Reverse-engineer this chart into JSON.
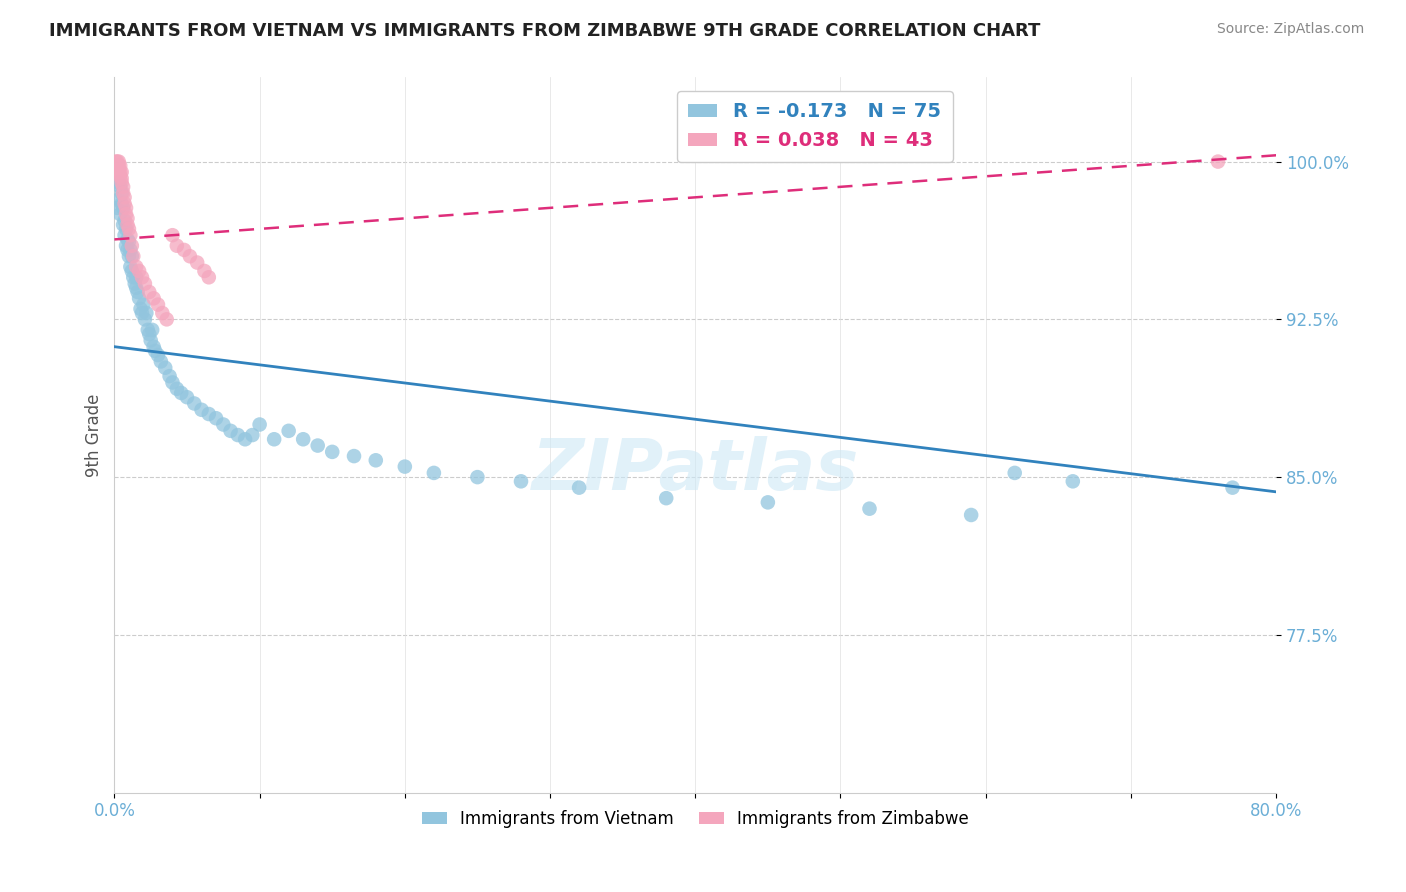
{
  "title": "IMMIGRANTS FROM VIETNAM VS IMMIGRANTS FROM ZIMBABWE 9TH GRADE CORRELATION CHART",
  "source": "Source: ZipAtlas.com",
  "ylabel": "9th Grade",
  "y_tick_values": [
    0.775,
    0.85,
    0.925,
    1.0
  ],
  "y_tick_labels": [
    "77.5%",
    "85.0%",
    "92.5%",
    "100.0%"
  ],
  "x_min": 0.0,
  "x_max": 0.8,
  "y_min": 0.7,
  "y_max": 1.04,
  "legend_blue_r": "-0.173",
  "legend_blue_n": "75",
  "legend_pink_r": "0.038",
  "legend_pink_n": "43",
  "legend_label_blue": "Immigrants from Vietnam",
  "legend_label_pink": "Immigrants from Zimbabwe",
  "color_blue": "#92c5de",
  "color_pink": "#f4a6bd",
  "color_trendline_blue": "#3182bd",
  "color_trendline_pink": "#de2d7a",
  "color_axis_labels": "#6baed6",
  "watermark": "ZIPatlas",
  "trendline_blue_x0": 0.0,
  "trendline_blue_y0": 0.912,
  "trendline_blue_x1": 0.8,
  "trendline_blue_y1": 0.843,
  "trendline_pink_x0": 0.0,
  "trendline_pink_y0": 0.963,
  "trendline_pink_x1": 0.8,
  "trendline_pink_y1": 1.003,
  "vietnam_x": [
    0.002,
    0.003,
    0.003,
    0.004,
    0.004,
    0.005,
    0.005,
    0.006,
    0.006,
    0.007,
    0.007,
    0.008,
    0.008,
    0.009,
    0.009,
    0.01,
    0.01,
    0.011,
    0.011,
    0.012,
    0.012,
    0.013,
    0.014,
    0.015,
    0.015,
    0.016,
    0.017,
    0.018,
    0.019,
    0.02,
    0.021,
    0.022,
    0.023,
    0.024,
    0.025,
    0.026,
    0.027,
    0.028,
    0.03,
    0.032,
    0.035,
    0.038,
    0.04,
    0.043,
    0.046,
    0.05,
    0.055,
    0.06,
    0.065,
    0.07,
    0.075,
    0.08,
    0.085,
    0.09,
    0.095,
    0.1,
    0.11,
    0.12,
    0.13,
    0.14,
    0.15,
    0.165,
    0.18,
    0.2,
    0.22,
    0.25,
    0.28,
    0.32,
    0.38,
    0.45,
    0.52,
    0.59,
    0.62,
    0.66,
    0.77
  ],
  "vietnam_y": [
    0.978,
    0.982,
    0.99,
    0.975,
    0.988,
    0.985,
    0.98,
    0.97,
    0.978,
    0.965,
    0.972,
    0.96,
    0.968,
    0.958,
    0.963,
    0.955,
    0.962,
    0.958,
    0.95,
    0.948,
    0.955,
    0.945,
    0.942,
    0.94,
    0.945,
    0.938,
    0.935,
    0.93,
    0.928,
    0.932,
    0.925,
    0.928,
    0.92,
    0.918,
    0.915,
    0.92,
    0.912,
    0.91,
    0.908,
    0.905,
    0.902,
    0.898,
    0.895,
    0.892,
    0.89,
    0.888,
    0.885,
    0.882,
    0.88,
    0.878,
    0.875,
    0.872,
    0.87,
    0.868,
    0.87,
    0.875,
    0.868,
    0.872,
    0.868,
    0.865,
    0.862,
    0.86,
    0.858,
    0.855,
    0.852,
    0.85,
    0.848,
    0.845,
    0.84,
    0.838,
    0.835,
    0.832,
    0.852,
    0.848,
    0.845
  ],
  "zimbabwe_x": [
    0.001,
    0.001,
    0.002,
    0.002,
    0.002,
    0.003,
    0.003,
    0.003,
    0.004,
    0.004,
    0.004,
    0.005,
    0.005,
    0.005,
    0.006,
    0.006,
    0.007,
    0.007,
    0.008,
    0.008,
    0.009,
    0.009,
    0.01,
    0.011,
    0.012,
    0.013,
    0.015,
    0.017,
    0.019,
    0.021,
    0.024,
    0.027,
    0.03,
    0.033,
    0.036,
    0.04,
    0.043,
    0.048,
    0.052,
    0.057,
    0.062,
    0.065,
    0.76
  ],
  "zimbabwe_y": [
    1.0,
    0.998,
    1.0,
    0.998,
    0.995,
    1.0,
    0.998,
    0.996,
    0.998,
    0.995,
    0.993,
    0.995,
    0.992,
    0.99,
    0.988,
    0.985,
    0.983,
    0.98,
    0.978,
    0.975,
    0.973,
    0.97,
    0.968,
    0.965,
    0.96,
    0.955,
    0.95,
    0.948,
    0.945,
    0.942,
    0.938,
    0.935,
    0.932,
    0.928,
    0.925,
    0.965,
    0.96,
    0.958,
    0.955,
    0.952,
    0.948,
    0.945,
    1.0
  ]
}
